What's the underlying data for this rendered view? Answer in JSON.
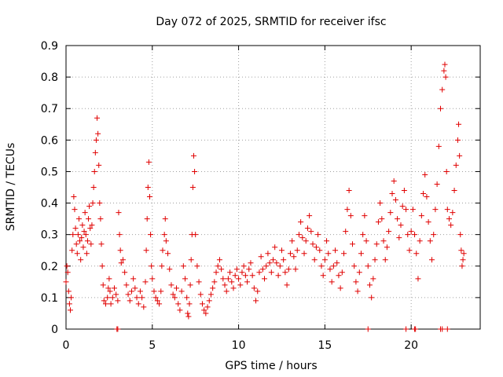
{
  "chart_data": {
    "type": "scatter",
    "title": "Day 072 of 2025, SRMTID for receiver ifsc",
    "xlabel": "GPS time / hours",
    "ylabel": "SRMTID / TECUs",
    "xlim": [
      0,
      24
    ],
    "ylim": [
      0,
      0.9
    ],
    "xticks": [
      0,
      5,
      10,
      15,
      20
    ],
    "yticks": [
      0,
      0.1,
      0.2,
      0.3,
      0.4,
      0.5,
      0.6,
      0.7,
      0.8,
      0.9
    ],
    "grid": true,
    "marker": "+",
    "color": "#e00000",
    "series": [
      {
        "name": "SRMTID",
        "points": [
          [
            0.0,
            0.15
          ],
          [
            0.05,
            0.2
          ],
          [
            0.1,
            0.18
          ],
          [
            0.15,
            0.12
          ],
          [
            0.2,
            0.08
          ],
          [
            0.25,
            0.06
          ],
          [
            0.3,
            0.1
          ],
          [
            0.35,
            0.25
          ],
          [
            0.4,
            0.3
          ],
          [
            0.45,
            0.42
          ],
          [
            0.5,
            0.38
          ],
          [
            0.55,
            0.32
          ],
          [
            0.6,
            0.27
          ],
          [
            0.65,
            0.24
          ],
          [
            0.7,
            0.3
          ],
          [
            0.75,
            0.35
          ],
          [
            0.8,
            0.28
          ],
          [
            0.85,
            0.22
          ],
          [
            0.9,
            0.29
          ],
          [
            0.95,
            0.33
          ],
          [
            1.0,
            0.26
          ],
          [
            1.05,
            0.31
          ],
          [
            1.1,
            0.37
          ],
          [
            1.15,
            0.3
          ],
          [
            1.2,
            0.24
          ],
          [
            1.25,
            0.28
          ],
          [
            1.3,
            0.35
          ],
          [
            1.35,
            0.39
          ],
          [
            1.4,
            0.32
          ],
          [
            1.45,
            0.27
          ],
          [
            1.5,
            0.33
          ],
          [
            1.55,
            0.4
          ],
          [
            1.6,
            0.45
          ],
          [
            1.65,
            0.5
          ],
          [
            1.7,
            0.56
          ],
          [
            1.75,
            0.6
          ],
          [
            1.8,
            0.67
          ],
          [
            1.85,
            0.62
          ],
          [
            1.9,
            0.52
          ],
          [
            1.95,
            0.4
          ],
          [
            2.0,
            0.35
          ],
          [
            2.05,
            0.27
          ],
          [
            2.1,
            0.2
          ],
          [
            2.15,
            0.14
          ],
          [
            2.2,
            0.09
          ],
          [
            2.3,
            0.08
          ],
          [
            2.4,
            0.1
          ],
          [
            2.45,
            0.13
          ],
          [
            2.5,
            0.16
          ],
          [
            2.55,
            0.12
          ],
          [
            2.6,
            0.08
          ],
          [
            2.7,
            0.1
          ],
          [
            2.8,
            0.13
          ],
          [
            2.9,
            0.11
          ],
          [
            3.0,
            0.09
          ],
          [
            3.05,
            0.37
          ],
          [
            3.1,
            0.3
          ],
          [
            3.15,
            0.25
          ],
          [
            3.2,
            0.21
          ],
          [
            3.3,
            0.22
          ],
          [
            3.4,
            0.18
          ],
          [
            3.5,
            0.14
          ],
          [
            3.6,
            0.11
          ],
          [
            3.7,
            0.09
          ],
          [
            3.8,
            0.12
          ],
          [
            3.9,
            0.16
          ],
          [
            4.0,
            0.13
          ],
          [
            4.1,
            0.1
          ],
          [
            4.2,
            0.08
          ],
          [
            4.3,
            0.12
          ],
          [
            4.4,
            0.1
          ],
          [
            4.5,
            0.07
          ],
          [
            4.6,
            0.15
          ],
          [
            4.65,
            0.25
          ],
          [
            4.7,
            0.35
          ],
          [
            4.75,
            0.45
          ],
          [
            4.8,
            0.53
          ],
          [
            4.85,
            0.42
          ],
          [
            4.9,
            0.3
          ],
          [
            4.95,
            0.2
          ],
          [
            5.0,
            0.16
          ],
          [
            5.1,
            0.12
          ],
          [
            5.2,
            0.1
          ],
          [
            5.3,
            0.09
          ],
          [
            5.4,
            0.08
          ],
          [
            5.5,
            0.12
          ],
          [
            5.55,
            0.2
          ],
          [
            5.6,
            0.25
          ],
          [
            5.7,
            0.3
          ],
          [
            5.75,
            0.35
          ],
          [
            5.8,
            0.28
          ],
          [
            5.9,
            0.24
          ],
          [
            6.0,
            0.19
          ],
          [
            6.1,
            0.14
          ],
          [
            6.2,
            0.11
          ],
          [
            6.3,
            0.1
          ],
          [
            6.4,
            0.13
          ],
          [
            6.5,
            0.08
          ],
          [
            6.6,
            0.06
          ],
          [
            6.7,
            0.12
          ],
          [
            6.8,
            0.2
          ],
          [
            6.9,
            0.16
          ],
          [
            7.0,
            0.1
          ],
          [
            7.05,
            0.05
          ],
          [
            7.1,
            0.04
          ],
          [
            7.15,
            0.08
          ],
          [
            7.2,
            0.14
          ],
          [
            7.25,
            0.22
          ],
          [
            7.3,
            0.3
          ],
          [
            7.35,
            0.45
          ],
          [
            7.4,
            0.55
          ],
          [
            7.45,
            0.5
          ],
          [
            7.5,
            0.3
          ],
          [
            7.6,
            0.2
          ],
          [
            7.7,
            0.15
          ],
          [
            7.8,
            0.11
          ],
          [
            7.9,
            0.08
          ],
          [
            8.0,
            0.06
          ],
          [
            8.1,
            0.05
          ],
          [
            8.2,
            0.07
          ],
          [
            8.3,
            0.09
          ],
          [
            8.4,
            0.11
          ],
          [
            8.5,
            0.13
          ],
          [
            8.6,
            0.15
          ],
          [
            8.7,
            0.18
          ],
          [
            8.8,
            0.2
          ],
          [
            8.9,
            0.22
          ],
          [
            9.0,
            0.19
          ],
          [
            9.1,
            0.16
          ],
          [
            9.2,
            0.14
          ],
          [
            9.3,
            0.12
          ],
          [
            9.4,
            0.16
          ],
          [
            9.5,
            0.18
          ],
          [
            9.6,
            0.15
          ],
          [
            9.7,
            0.13
          ],
          [
            9.8,
            0.17
          ],
          [
            9.9,
            0.19
          ],
          [
            10.0,
            0.16
          ],
          [
            10.1,
            0.14
          ],
          [
            10.2,
            0.18
          ],
          [
            10.3,
            0.2
          ],
          [
            10.4,
            0.17
          ],
          [
            10.5,
            0.15
          ],
          [
            10.6,
            0.19
          ],
          [
            10.7,
            0.21
          ],
          [
            10.8,
            0.17
          ],
          [
            10.9,
            0.13
          ],
          [
            11.0,
            0.09
          ],
          [
            11.1,
            0.12
          ],
          [
            11.2,
            0.18
          ],
          [
            11.3,
            0.23
          ],
          [
            11.4,
            0.19
          ],
          [
            11.5,
            0.16
          ],
          [
            11.6,
            0.2
          ],
          [
            11.7,
            0.24
          ],
          [
            11.8,
            0.21
          ],
          [
            11.9,
            0.18
          ],
          [
            12.0,
            0.22
          ],
          [
            12.1,
            0.26
          ],
          [
            12.2,
            0.21
          ],
          [
            12.3,
            0.17
          ],
          [
            12.4,
            0.2
          ],
          [
            12.5,
            0.25
          ],
          [
            12.6,
            0.22
          ],
          [
            12.7,
            0.18
          ],
          [
            12.8,
            0.14
          ],
          [
            12.9,
            0.19
          ],
          [
            13.0,
            0.24
          ],
          [
            13.1,
            0.28
          ],
          [
            13.2,
            0.23
          ],
          [
            13.3,
            0.19
          ],
          [
            13.4,
            0.25
          ],
          [
            13.5,
            0.3
          ],
          [
            13.6,
            0.34
          ],
          [
            13.7,
            0.29
          ],
          [
            13.8,
            0.24
          ],
          [
            13.9,
            0.28
          ],
          [
            14.0,
            0.32
          ],
          [
            14.1,
            0.36
          ],
          [
            14.2,
            0.31
          ],
          [
            14.3,
            0.27
          ],
          [
            14.4,
            0.22
          ],
          [
            14.5,
            0.26
          ],
          [
            14.6,
            0.3
          ],
          [
            14.7,
            0.25
          ],
          [
            14.8,
            0.2
          ],
          [
            14.9,
            0.17
          ],
          [
            15.0,
            0.22
          ],
          [
            15.1,
            0.28
          ],
          [
            15.2,
            0.24
          ],
          [
            15.3,
            0.19
          ],
          [
            15.4,
            0.15
          ],
          [
            15.5,
            0.2
          ],
          [
            15.6,
            0.25
          ],
          [
            15.7,
            0.21
          ],
          [
            15.8,
            0.17
          ],
          [
            15.9,
            0.13
          ],
          [
            16.0,
            0.18
          ],
          [
            16.1,
            0.24
          ],
          [
            16.2,
            0.31
          ],
          [
            16.3,
            0.38
          ],
          [
            16.4,
            0.44
          ],
          [
            16.5,
            0.36
          ],
          [
            16.6,
            0.27
          ],
          [
            16.7,
            0.2
          ],
          [
            16.8,
            0.15
          ],
          [
            16.9,
            0.12
          ],
          [
            17.0,
            0.18
          ],
          [
            17.1,
            0.24
          ],
          [
            17.2,
            0.3
          ],
          [
            17.3,
            0.36
          ],
          [
            17.4,
            0.28
          ],
          [
            17.5,
            0.2
          ],
          [
            17.6,
            0.14
          ],
          [
            17.7,
            0.1
          ],
          [
            17.8,
            0.16
          ],
          [
            17.9,
            0.22
          ],
          [
            18.0,
            0.27
          ],
          [
            18.1,
            0.34
          ],
          [
            18.2,
            0.4
          ],
          [
            18.3,
            0.35
          ],
          [
            18.4,
            0.28
          ],
          [
            18.5,
            0.22
          ],
          [
            18.6,
            0.26
          ],
          [
            18.7,
            0.31
          ],
          [
            18.8,
            0.37
          ],
          [
            18.9,
            0.43
          ],
          [
            19.0,
            0.47
          ],
          [
            19.1,
            0.41
          ],
          [
            19.2,
            0.35
          ],
          [
            19.3,
            0.29
          ],
          [
            19.4,
            0.33
          ],
          [
            19.5,
            0.39
          ],
          [
            19.6,
            0.44
          ],
          [
            19.7,
            0.38
          ],
          [
            19.8,
            0.3
          ],
          [
            19.9,
            0.25
          ],
          [
            20.0,
            0.31
          ],
          [
            20.1,
            0.38
          ],
          [
            20.2,
            0.3
          ],
          [
            20.3,
            0.24
          ],
          [
            20.4,
            0.16
          ],
          [
            20.5,
            0.28
          ],
          [
            20.6,
            0.36
          ],
          [
            20.7,
            0.43
          ],
          [
            20.8,
            0.49
          ],
          [
            20.9,
            0.42
          ],
          [
            21.0,
            0.34
          ],
          [
            21.1,
            0.28
          ],
          [
            21.2,
            0.22
          ],
          [
            21.3,
            0.3
          ],
          [
            21.4,
            0.38
          ],
          [
            21.5,
            0.46
          ],
          [
            21.6,
            0.58
          ],
          [
            21.7,
            0.7
          ],
          [
            21.8,
            0.76
          ],
          [
            21.9,
            0.82
          ],
          [
            21.95,
            0.84
          ],
          [
            22.0,
            0.8
          ],
          [
            22.05,
            0.5
          ],
          [
            22.1,
            0.38
          ],
          [
            22.2,
            0.35
          ],
          [
            22.3,
            0.33
          ],
          [
            22.4,
            0.37
          ],
          [
            22.5,
            0.44
          ],
          [
            22.6,
            0.52
          ],
          [
            22.7,
            0.6
          ],
          [
            22.75,
            0.65
          ],
          [
            22.8,
            0.55
          ],
          [
            22.85,
            0.3
          ],
          [
            22.9,
            0.25
          ],
          [
            22.95,
            0.2
          ],
          [
            23.0,
            0.22
          ],
          [
            23.05,
            0.24
          ],
          [
            2.95,
            0.0
          ],
          [
            3.0,
            0.0
          ],
          [
            17.5,
            0.0
          ],
          [
            19.7,
            0.0
          ],
          [
            20.2,
            0.0
          ],
          [
            20.25,
            0.0
          ],
          [
            21.7,
            0.0
          ],
          [
            21.8,
            0.0
          ],
          [
            22.1,
            0.0
          ]
        ]
      }
    ]
  }
}
